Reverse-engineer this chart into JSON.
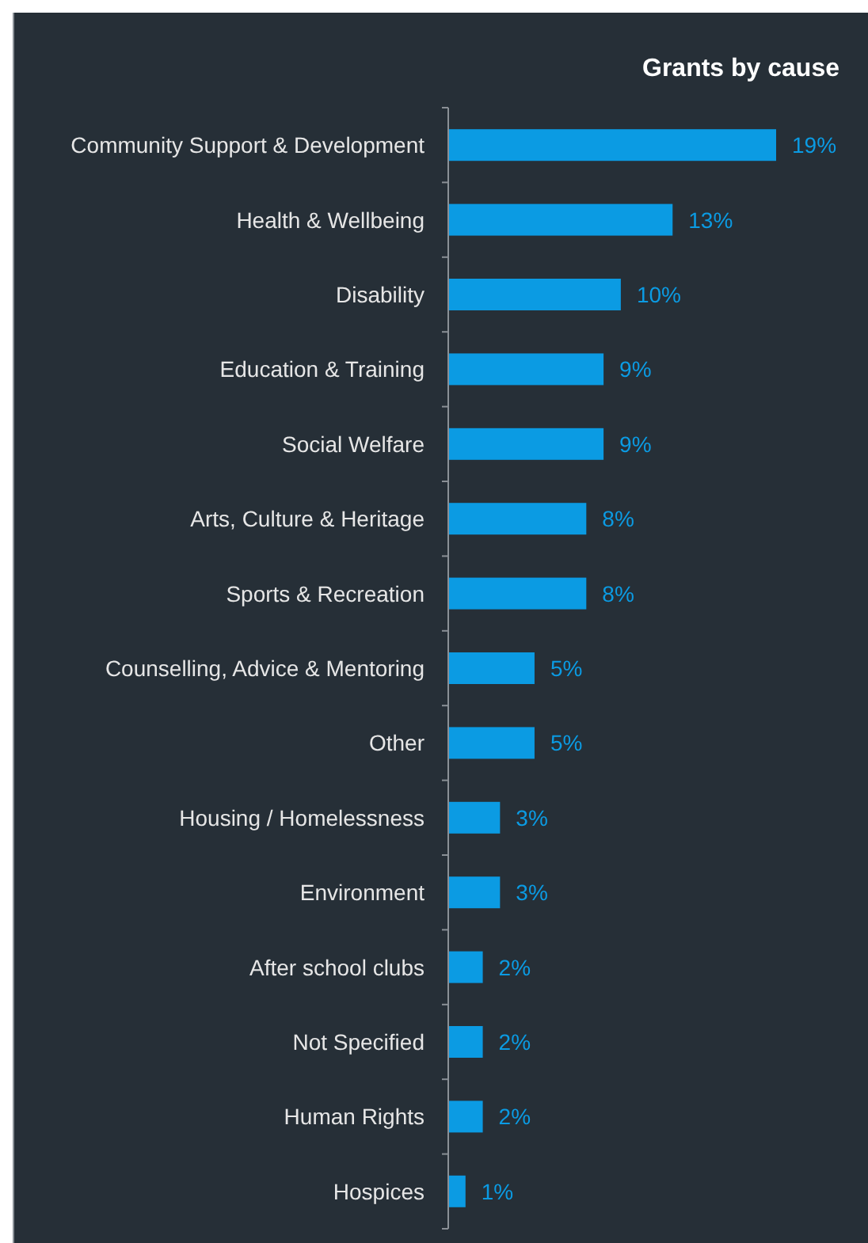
{
  "chart_data": {
    "type": "bar",
    "orientation": "horizontal",
    "title": "Grants by cause",
    "categories": [
      "Community Support & Development",
      "Health & Wellbeing",
      "Disability",
      "Education & Training",
      "Social Welfare",
      "Arts, Culture & Heritage",
      "Sports & Recreation",
      "Counselling, Advice & Mentoring",
      "Other",
      "Housing / Homelessness",
      "Environment",
      "After school clubs",
      "Not Specified",
      "Human Rights",
      "Hospices"
    ],
    "values": [
      19,
      13,
      10,
      9,
      9,
      8,
      8,
      5,
      5,
      3,
      3,
      2,
      2,
      2,
      1
    ],
    "value_labels": [
      "19%",
      "13%",
      "10%",
      "9%",
      "9%",
      "8%",
      "8%",
      "5%",
      "5%",
      "3%",
      "3%",
      "2%",
      "2%",
      "2%",
      "1%"
    ],
    "color": "#0b9be3"
  }
}
